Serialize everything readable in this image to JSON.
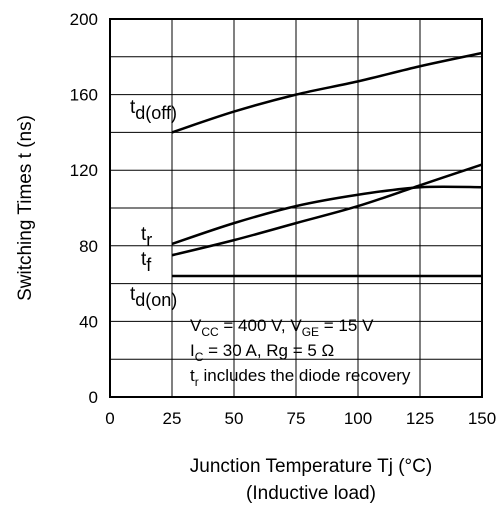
{
  "chart_data": {
    "type": "line",
    "title": "",
    "xlabel": "Junction Temperature    Tj  (°C)",
    "xlabel_note": "(Inductive load)",
    "ylabel": "Switching Times   t  (ns)",
    "xlim": [
      0,
      150
    ],
    "ylim": [
      0,
      200
    ],
    "x_ticks": [
      "0",
      "25",
      "50",
      "75",
      "100",
      "125",
      "150"
    ],
    "y_ticks": [
      "0",
      "40",
      "80",
      "120",
      "160",
      "200"
    ],
    "grid": true,
    "x": [
      25,
      50,
      75,
      100,
      125,
      150
    ],
    "series": [
      {
        "name": "d(off)",
        "label_base": "t",
        "label_sub": "d(off)",
        "values": [
          140,
          151,
          160,
          167,
          175,
          182
        ]
      },
      {
        "name": "r",
        "label_base": "t",
        "label_sub": "r",
        "values": [
          81,
          92,
          101,
          107,
          111,
          111
        ]
      },
      {
        "name": "f",
        "label_base": "t",
        "label_sub": "f",
        "values": [
          75,
          83,
          92,
          101,
          112,
          123
        ]
      },
      {
        "name": "d(on)",
        "label_base": "t",
        "label_sub": "d(on)",
        "values": [
          64,
          64,
          64,
          64,
          64,
          64
        ]
      }
    ],
    "annotations": {
      "line1": {
        "a": "V",
        "a_sub": "CC",
        "b": " = 400 V, V",
        "b_sub": "GE",
        "c": " = 15 V"
      },
      "line2": {
        "a": "I",
        "a_sub": "C",
        "b": " = 30 A, Rg = 5 Ω"
      },
      "line3": {
        "a": "t",
        "a_sub": "r",
        "b": " includes the diode recovery"
      }
    }
  }
}
